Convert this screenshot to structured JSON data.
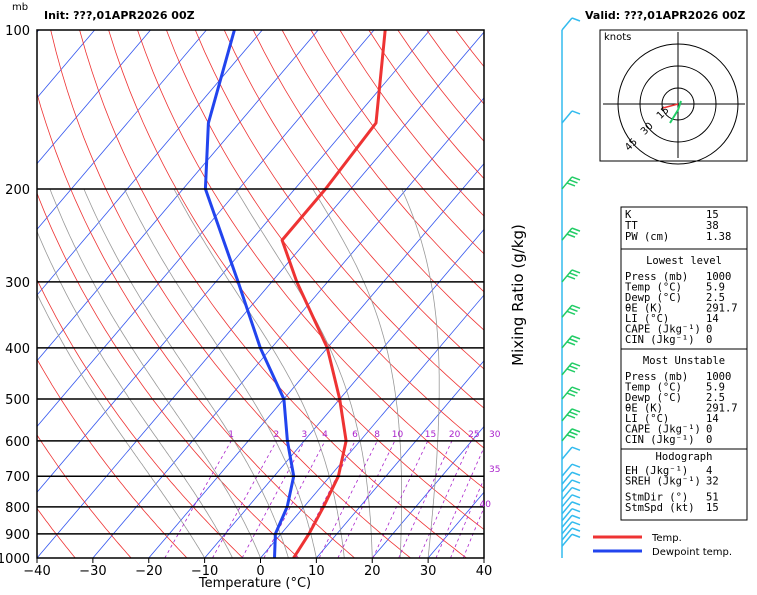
{
  "header": {
    "units": "mb",
    "init": "Init: ???,01APR2026 00Z",
    "valid": "Valid: ???,01APR2026 00Z"
  },
  "colors": {
    "temp": "#ee3333",
    "dewpoint": "#2244ee",
    "isotherm": "#3355ee",
    "dry_adiabat": "#ee3333",
    "moist_adiabat": "#999999",
    "mixing_ratio": "#aa22cc",
    "wind_barb": "#33bbee",
    "hodo_barb": "#22cc66"
  },
  "chart_data": {
    "type": "skew-t",
    "xlabel": "Temperature (°C)",
    "ylabel_right": "Mixing Ratio (g/kg)",
    "x_ticks": [
      -40,
      -30,
      -20,
      -10,
      0,
      10,
      20,
      30,
      40
    ],
    "x_tick_labels": [
      "−40",
      "−30",
      "−20",
      "−10",
      "0",
      "10",
      "20",
      "30",
      "40"
    ],
    "pressure_levels": [
      1000,
      900,
      800,
      700,
      600,
      500,
      400,
      300,
      200,
      100
    ],
    "xlim": [
      -40,
      40
    ],
    "plim": [
      1000,
      100
    ],
    "mixing_ratio_labels": [
      "1",
      "2",
      "3",
      "4",
      "6",
      "8",
      "10",
      "15",
      "20",
      "25",
      "30",
      "35",
      "40"
    ],
    "series": [
      {
        "name": "Temp.",
        "points": [
          {
            "p": 1000,
            "t": 5.9
          },
          {
            "p": 900,
            "t": 5.0
          },
          {
            "p": 800,
            "t": 3.5
          },
          {
            "p": 700,
            "t": 1.5
          },
          {
            "p": 600,
            "t": -2.5
          },
          {
            "p": 500,
            "t": -10.0
          },
          {
            "p": 400,
            "t": -20.0
          },
          {
            "p": 300,
            "t": -35.5
          },
          {
            "p": 250,
            "t": -44.5
          },
          {
            "p": 200,
            "t": -44.5
          },
          {
            "p": 150,
            "t": -45.5
          },
          {
            "p": 100,
            "t": -58.0
          }
        ]
      },
      {
        "name": "Dewpoint temp.",
        "points": [
          {
            "p": 1000,
            "t": 2.5
          },
          {
            "p": 900,
            "t": -1.0
          },
          {
            "p": 800,
            "t": -3.0
          },
          {
            "p": 700,
            "t": -6.5
          },
          {
            "p": 600,
            "t": -13.0
          },
          {
            "p": 500,
            "t": -20.0
          },
          {
            "p": 400,
            "t": -32.0
          },
          {
            "p": 300,
            "t": -46.0
          },
          {
            "p": 200,
            "t": -66.0
          },
          {
            "p": 150,
            "t": -75.5
          },
          {
            "p": 100,
            "t": -85.0
          }
        ]
      }
    ],
    "hodograph": {
      "units": "knots",
      "ring_labels": [
        "15",
        "30",
        "45"
      ]
    }
  },
  "indices": {
    "K": "15",
    "TT": "38",
    "PW (cm)": "1.38"
  },
  "lowest_level": {
    "title": "Lowest level",
    "rows": [
      [
        "Press (mb)",
        "1000"
      ],
      [
        "Temp (°C)",
        "5.9"
      ],
      [
        "Dewp (°C)",
        "2.5"
      ],
      [
        "θE (K)",
        "291.7"
      ],
      [
        "LI (°C)",
        "14"
      ],
      [
        "CAPE (Jkg⁻¹)",
        "0"
      ],
      [
        "CIN (Jkg⁻¹)",
        "0"
      ]
    ]
  },
  "most_unstable": {
    "title": "Most Unstable",
    "rows": [
      [
        "Press (mb)",
        "1000"
      ],
      [
        "Temp (°C)",
        "5.9"
      ],
      [
        "Dewp (°C)",
        "2.5"
      ],
      [
        "θE (K)",
        "291.7"
      ],
      [
        "LI (°C)",
        "14"
      ],
      [
        "CAPE (Jkg⁻¹)",
        "0"
      ],
      [
        "CIN (Jkg⁻¹)",
        "0"
      ]
    ]
  },
  "hodograph_params": {
    "title": "Hodograph",
    "rows": [
      [
        "EH (Jkg⁻¹)",
        "4"
      ],
      [
        "SREH (Jkg⁻¹)",
        "32"
      ],
      [
        "StmDir (°)",
        "51"
      ],
      [
        "StmSpd (kt)",
        "15"
      ]
    ]
  },
  "legend": [
    {
      "label": "Temp.",
      "color": "#ee3333"
    },
    {
      "label": "Dewpoint temp.",
      "color": "#2244ee"
    }
  ]
}
